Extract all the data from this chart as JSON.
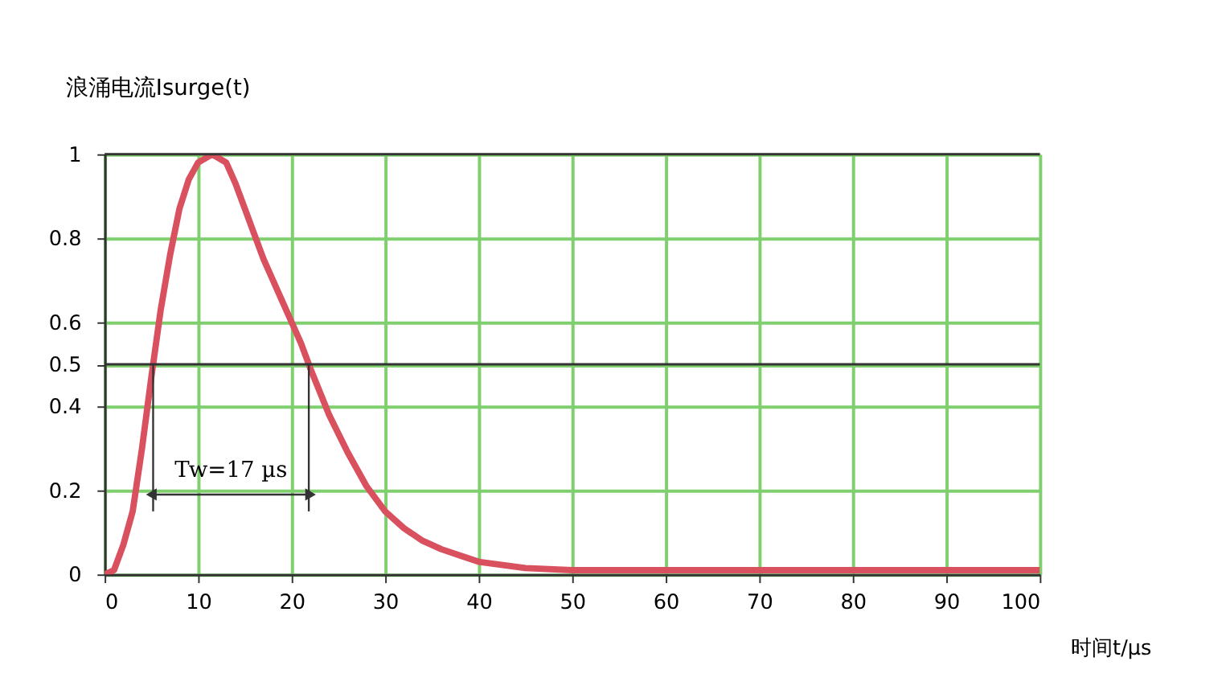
{
  "chart_data": {
    "type": "line",
    "xlabel": "时间t/µs",
    "ylabel": "浪涌电流Isurge(t)",
    "x": [
      0,
      1,
      2,
      3,
      4,
      5,
      6,
      7,
      8,
      9,
      10,
      11.5,
      13,
      14,
      15,
      16,
      17,
      18,
      19,
      20,
      21,
      22,
      24,
      26,
      28,
      30,
      32,
      34,
      36,
      38,
      40,
      45,
      50,
      60,
      70,
      80,
      90,
      100
    ],
    "series": [
      {
        "color": "#d9505f",
        "values": [
          0,
          0.01,
          0.07,
          0.15,
          0.3,
          0.47,
          0.63,
          0.76,
          0.87,
          0.94,
          0.98,
          1.0,
          0.98,
          0.93,
          0.87,
          0.81,
          0.75,
          0.7,
          0.65,
          0.6,
          0.55,
          0.49,
          0.38,
          0.29,
          0.21,
          0.15,
          0.11,
          0.08,
          0.06,
          0.045,
          0.03,
          0.015,
          0.01,
          0.01,
          0.01,
          0.01,
          0.01,
          0.01
        ]
      }
    ],
    "xlim": [
      0,
      100
    ],
    "xticks": [
      0,
      10,
      20,
      30,
      40,
      50,
      60,
      70,
      80,
      90,
      100
    ],
    "ylim": [
      0,
      1
    ],
    "yticks": [
      0,
      0.2,
      0.4,
      0.5,
      0.6,
      0.8,
      1
    ],
    "grid": true,
    "marker": "none",
    "line_style": "solid",
    "ref_lines": [
      {
        "axis": "y",
        "value": 0.5,
        "label": null,
        "color": "#333333"
      },
      {
        "axis": "y",
        "value": 1,
        "label": null,
        "color": "#333333"
      }
    ],
    "annotations": [
      "Tw=17 µs"
    ]
  }
}
